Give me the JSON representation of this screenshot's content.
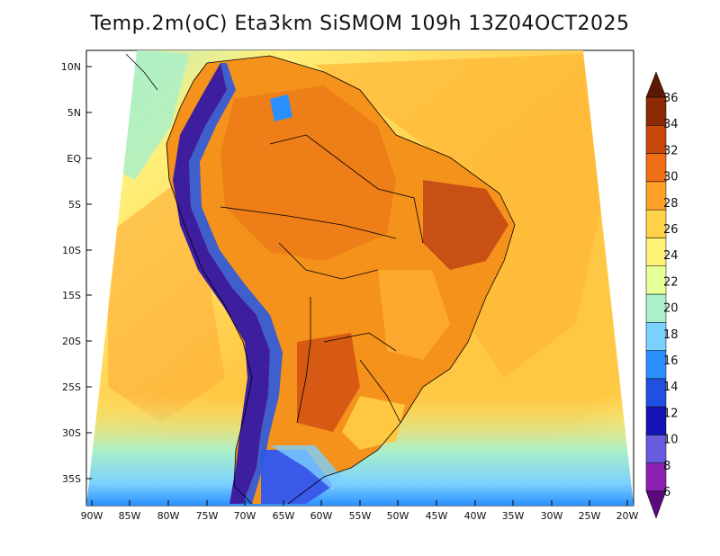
{
  "title": "Temp.2m(oC) Eta3km SiSMOM 109h 13Z04OCT2025",
  "lat_labels": [
    "10N",
    "5N",
    "EQ",
    "5S",
    "10S",
    "15S",
    "20S",
    "25S",
    "30S",
    "35S"
  ],
  "lon_labels": [
    "90W",
    "85W",
    "80W",
    "75W",
    "70W",
    "65W",
    "60W",
    "55W",
    "50W",
    "45W",
    "40W",
    "35W",
    "30W",
    "25W",
    "20W"
  ],
  "colorbar": {
    "labels": [
      "6",
      "8",
      "10",
      "12",
      "14",
      "16",
      "18",
      "20",
      "22",
      "24",
      "26",
      "28",
      "30",
      "32",
      "34",
      "36"
    ],
    "colors": [
      "#5a0a7a",
      "#8a1fb0",
      "#6a5ae0",
      "#1414b4",
      "#2050e0",
      "#2a90ff",
      "#7cd0ff",
      "#aaf0c8",
      "#e6ff96",
      "#fff078",
      "#ffd24a",
      "#ffa028",
      "#f06e14",
      "#c84a0a",
      "#8c2a06",
      "#5a1a04"
    ]
  },
  "palette": {
    "ocean_cool": "#a8e6d0",
    "ocean_warm": "#ffd864",
    "land_hot": "#f08a20",
    "land_hotter": "#d65a14",
    "andes_cold": "#3c1e9e",
    "andes_ice": "#2a5ae0"
  }
}
